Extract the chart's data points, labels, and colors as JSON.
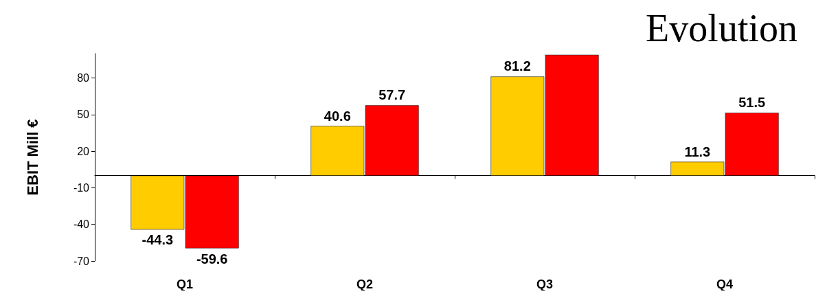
{
  "chart_data": {
    "type": "bar",
    "title": "Evolution",
    "ylabel": "EBIT Mill €",
    "categories": [
      "Q1",
      "Q2",
      "Q3",
      "Q4"
    ],
    "series": [
      {
        "color": "#ffcc00",
        "values": [
          -44.3,
          40.6,
          81.2,
          11.3
        ],
        "value_labels": [
          "-44.3",
          "40.6",
          "81.2",
          "11.3"
        ]
      },
      {
        "color": "#ff0000",
        "values": [
          -59.6,
          57.7,
          99,
          51.5
        ],
        "value_labels": [
          "-59.6",
          "57.7",
          null,
          "51.5"
        ]
      }
    ],
    "ylim": [
      -70,
      100
    ],
    "yticks": [
      -70,
      -40,
      -10,
      20,
      50,
      80
    ],
    "grid": false
  }
}
